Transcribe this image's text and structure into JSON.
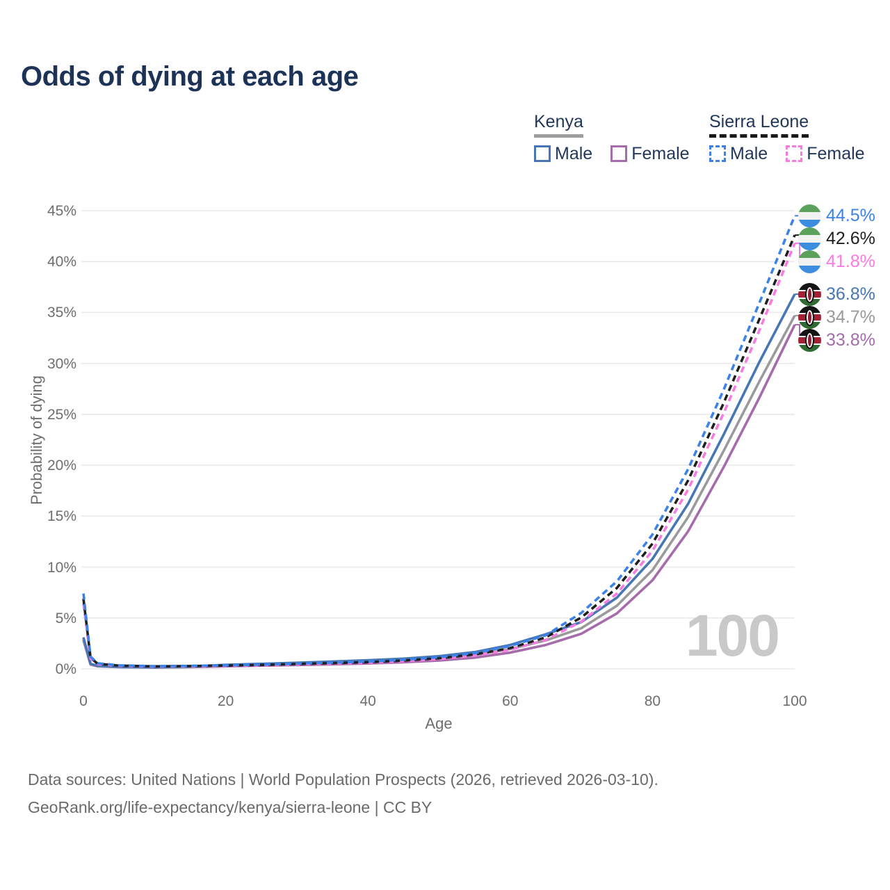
{
  "header": {
    "title": "Odds of dying at each age"
  },
  "legend": {
    "groups": [
      {
        "name": "Kenya",
        "line_style": "solid",
        "underline_color": "#9e9e9e",
        "items": [
          {
            "label": "Male",
            "color": "#4677b4"
          },
          {
            "label": "Female",
            "color": "#a66bab"
          }
        ]
      },
      {
        "name": "Sierra Leone",
        "line_style": "dashed",
        "underline_color": "#1a1a1a",
        "items": [
          {
            "label": "Male",
            "color": "#3d82e8"
          },
          {
            "label": "Female",
            "color": "#f97ae0"
          }
        ]
      }
    ]
  },
  "chart_data": {
    "type": "line",
    "title": "Odds of dying at each age",
    "xlabel": "Age",
    "ylabel": "Probability of dying",
    "xlim": [
      0,
      100
    ],
    "ylim": [
      0,
      45
    ],
    "grid": true,
    "legend_position": "top-right",
    "watermark": "100",
    "x": [
      0,
      1,
      2,
      5,
      10,
      15,
      20,
      25,
      30,
      35,
      40,
      45,
      50,
      55,
      60,
      65,
      70,
      75,
      80,
      85,
      90,
      95,
      100
    ],
    "series": [
      {
        "name": "Sierra Leone Male",
        "country": "sierra-leone",
        "sex": "male",
        "color": "#3d82e8",
        "dash": true,
        "end_label": "44.5%",
        "values": [
          7.4,
          1.2,
          0.55,
          0.35,
          0.27,
          0.3,
          0.35,
          0.42,
          0.52,
          0.62,
          0.72,
          0.9,
          1.15,
          1.55,
          2.25,
          3.3,
          5.5,
          8.6,
          13.2,
          19.6,
          27.4,
          35.9,
          44.5
        ]
      },
      {
        "name": "Sierra Leone Both sexes",
        "country": "sierra-leone",
        "sex": "both",
        "color": "#1f1f1f",
        "dash": true,
        "end_label": "42.6%",
        "values": [
          6.9,
          1.1,
          0.5,
          0.32,
          0.25,
          0.28,
          0.33,
          0.39,
          0.48,
          0.57,
          0.66,
          0.82,
          1.05,
          1.42,
          2.05,
          3.1,
          5.05,
          7.95,
          12.3,
          18.5,
          26.1,
          34.3,
          42.6
        ]
      },
      {
        "name": "Sierra Leone Female",
        "country": "sierra-leone",
        "sex": "female",
        "color": "#f97ae0",
        "dash": true,
        "end_label": "41.8%",
        "values": [
          6.4,
          1.0,
          0.46,
          0.3,
          0.23,
          0.26,
          0.3,
          0.36,
          0.44,
          0.52,
          0.6,
          0.75,
          0.96,
          1.3,
          1.88,
          2.85,
          4.65,
          7.4,
          11.6,
          17.6,
          25.1,
          33.2,
          41.8
        ]
      },
      {
        "name": "Kenya Male",
        "country": "kenya",
        "sex": "male",
        "color": "#4677b4",
        "dash": false,
        "end_label": "36.8%",
        "values": [
          3.1,
          0.5,
          0.3,
          0.2,
          0.16,
          0.24,
          0.4,
          0.5,
          0.6,
          0.72,
          0.85,
          1.0,
          1.25,
          1.65,
          2.35,
          3.4,
          4.6,
          7.0,
          10.8,
          16.2,
          23.0,
          30.1,
          36.8
        ]
      },
      {
        "name": "Kenya Both sexes",
        "country": "kenya",
        "sex": "both",
        "color": "#9a9a9a",
        "dash": false,
        "end_label": "34.7%",
        "values": [
          2.9,
          0.46,
          0.27,
          0.18,
          0.14,
          0.2,
          0.33,
          0.42,
          0.5,
          0.58,
          0.68,
          0.82,
          1.02,
          1.35,
          1.95,
          2.8,
          4.0,
          6.2,
          9.7,
          14.9,
          21.4,
          28.2,
          34.7
        ]
      },
      {
        "name": "Kenya Female",
        "country": "kenya",
        "sex": "female",
        "color": "#a66bab",
        "dash": false,
        "end_label": "33.8%",
        "values": [
          2.8,
          0.43,
          0.25,
          0.17,
          0.13,
          0.17,
          0.25,
          0.32,
          0.38,
          0.45,
          0.53,
          0.65,
          0.82,
          1.1,
          1.6,
          2.35,
          3.45,
          5.45,
          8.7,
          13.5,
          19.8,
          26.6,
          33.8
        ]
      }
    ],
    "xticks": {
      "values": [
        0,
        20,
        40,
        60,
        80,
        100
      ],
      "labels": [
        "0",
        "20",
        "40",
        "60",
        "80",
        "100"
      ]
    },
    "yticks": {
      "values": [
        0,
        5,
        10,
        15,
        20,
        25,
        30,
        35,
        40,
        45
      ],
      "labels": [
        "0%",
        "5%",
        "10%",
        "15%",
        "20%",
        "25%",
        "30%",
        "35%",
        "40%",
        "45%"
      ]
    }
  },
  "colors": {
    "title": "#1c3357",
    "legend_text": "#22385b",
    "axis_text": "#6e6e6e",
    "gridline": "#e9e9e9",
    "watermark": "#c9c9c9",
    "footer_text": "#6a6a6a"
  },
  "footer": {
    "line1": "Data sources: United Nations | World Population Prospects (2026, retrieved 2026-03-10).",
    "line2": "GeoRank.org/life-expectancy/kenya/sierra-leone | CC BY"
  }
}
